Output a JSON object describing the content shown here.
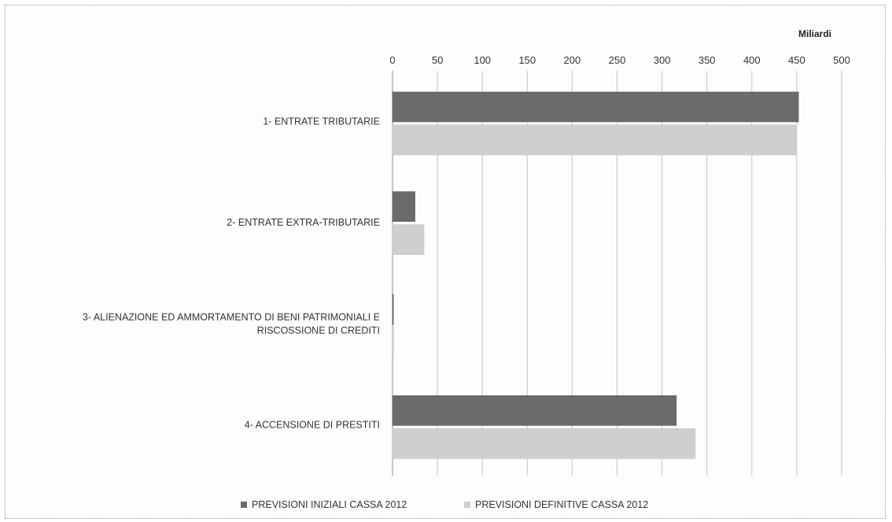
{
  "chart_data": {
    "type": "bar",
    "orientation": "horizontal",
    "unit_label": "Miliardi",
    "xlim": [
      0,
      500
    ],
    "ticks": [
      "0",
      "50",
      "100",
      "150",
      "200",
      "250",
      "300",
      "350",
      "400",
      "450",
      "500"
    ],
    "grid": true,
    "legend_position": "bottom",
    "categories": [
      [
        "1- ENTRATE TRIBUTARIE"
      ],
      [
        "2- ENTRATE EXTRA-TRIBUTARIE"
      ],
      [
        "3- ALIENAZIONE ED AMMORTAMENTO DI BENI PATRIMONIALI E",
        "RISCOSSIONE DI CREDITI"
      ],
      [
        "4- ACCENSIONE DI PRESTITI"
      ]
    ],
    "series": [
      {
        "name": "PREVISIONI INIZIALI CASSA 2012",
        "color": "#6b6b6b",
        "values": [
          452,
          25,
          1,
          316
        ]
      },
      {
        "name": "PREVISIONI DEFINITIVE CASSA 2012",
        "color": "#cfcfcf",
        "values": [
          449,
          35,
          1,
          337
        ]
      }
    ]
  }
}
